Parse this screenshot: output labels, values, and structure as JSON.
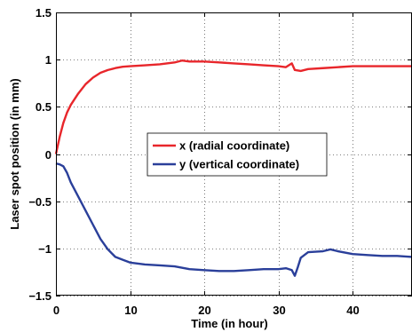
{
  "chart_data": {
    "type": "line",
    "title": "",
    "xlabel": "Time (in hour)",
    "ylabel": "Laser spot position (in mm)",
    "xlim": [
      0,
      48
    ],
    "ylim": [
      -1.5,
      1.5
    ],
    "xticks": [
      0,
      10,
      20,
      30,
      40
    ],
    "xtick_labels": [
      "0",
      "10",
      "20",
      "30",
      "40"
    ],
    "yticks": [
      -1.5,
      -1,
      -0.5,
      0,
      0.5,
      1,
      1.5
    ],
    "ytick_labels": [
      "−1.5",
      "−1",
      "−0.5",
      "0",
      "0.5",
      "1",
      "1.5"
    ],
    "grid": true,
    "legend_position": "center",
    "series": [
      {
        "name": "x (radial coordinate)",
        "color": "#e8262b",
        "x": [
          0,
          0.5,
          1,
          1.5,
          2,
          3,
          4,
          5,
          6,
          7,
          8,
          9,
          10,
          12,
          14,
          16,
          17,
          18,
          20,
          22,
          24,
          26,
          28,
          30,
          31,
          31.8,
          32.2,
          33,
          34,
          36,
          38,
          40,
          42,
          44,
          46,
          48
        ],
        "values": [
          0.0,
          0.18,
          0.33,
          0.44,
          0.52,
          0.64,
          0.74,
          0.81,
          0.86,
          0.89,
          0.91,
          0.925,
          0.93,
          0.94,
          0.95,
          0.97,
          0.99,
          0.98,
          0.98,
          0.97,
          0.96,
          0.95,
          0.94,
          0.93,
          0.92,
          0.96,
          0.89,
          0.88,
          0.9,
          0.91,
          0.92,
          0.93,
          0.93,
          0.93,
          0.93,
          0.93
        ]
      },
      {
        "name": "y (vertical coordinate)",
        "color": "#2a3f9a",
        "x": [
          0,
          0.5,
          1,
          1.5,
          2,
          3,
          4,
          5,
          6,
          7,
          8,
          9,
          10,
          12,
          14,
          16,
          18,
          20,
          22,
          24,
          26,
          28,
          30,
          31,
          31.8,
          32.2,
          32.6,
          33,
          34,
          36,
          37,
          38,
          40,
          42,
          44,
          46,
          48
        ],
        "values": [
          -0.1,
          -0.11,
          -0.13,
          -0.2,
          -0.3,
          -0.45,
          -0.6,
          -0.75,
          -0.9,
          -1.01,
          -1.09,
          -1.12,
          -1.15,
          -1.17,
          -1.18,
          -1.19,
          -1.22,
          -1.23,
          -1.24,
          -1.24,
          -1.23,
          -1.22,
          -1.22,
          -1.21,
          -1.23,
          -1.29,
          -1.2,
          -1.1,
          -1.04,
          -1.03,
          -1.01,
          -1.03,
          -1.06,
          -1.07,
          -1.08,
          -1.08,
          -1.09
        ]
      }
    ]
  }
}
